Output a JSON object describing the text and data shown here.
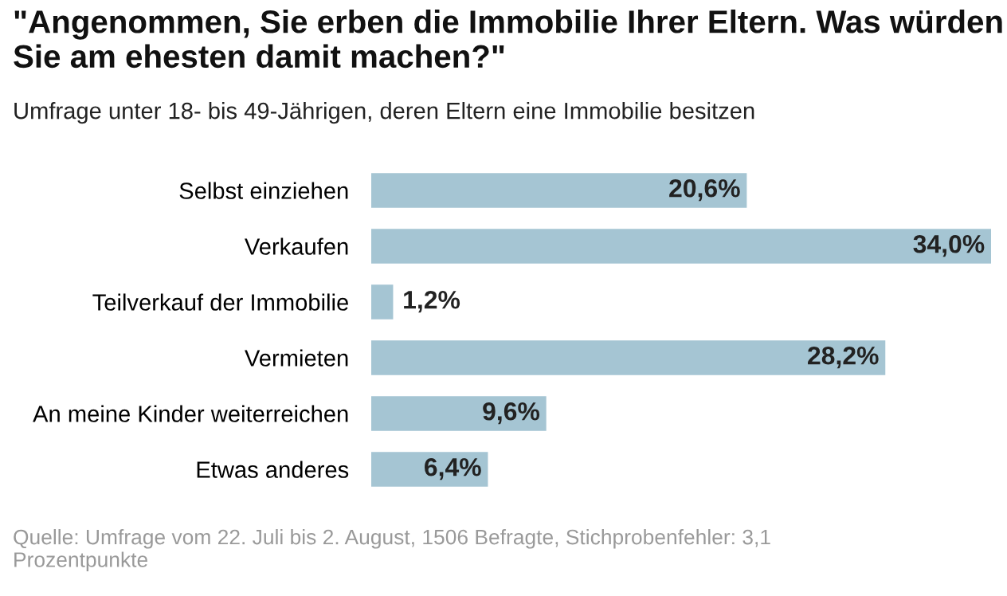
{
  "chart_data": {
    "type": "bar",
    "orientation": "horizontal",
    "title": "\"Angenommen, Sie erben die Immobilie Ihrer Eltern. Was würden Sie am ehesten damit machen?\"",
    "subtitle": "Umfrage unter 18- bis 49-Jährigen, deren Eltern eine Immobilie besitzen",
    "categories": [
      "Selbst einziehen",
      "Verkaufen",
      "Teilverkauf der Immobilie",
      "Vermieten",
      "An meine Kinder weiterreichen",
      "Etwas anderes"
    ],
    "values": [
      20.6,
      34.0,
      1.2,
      28.2,
      9.6,
      6.4
    ],
    "value_labels": [
      "20,6%",
      "34,0%",
      "1,2%",
      "28,2%",
      "9,6%",
      "6,4%"
    ],
    "color": "#a5c5d3",
    "annotations": [
      "Quelle: Umfrage vom 22. Juli bis 2. August, 1506 Befragte, Stichprobenfehler: 3,1 Prozentpunkte"
    ]
  }
}
